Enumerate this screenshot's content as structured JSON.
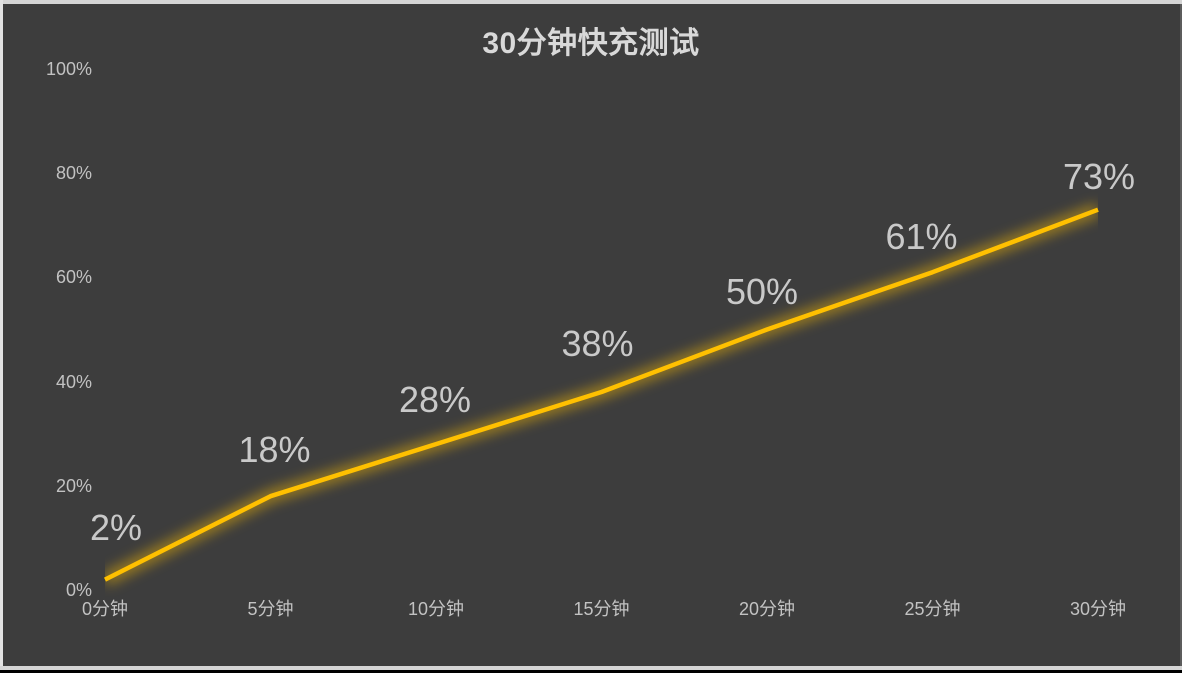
{
  "chart_data": {
    "type": "line",
    "title": "30分钟快充测试",
    "categories": [
      "0分钟",
      "5分钟",
      "10分钟",
      "15分钟",
      "20分钟",
      "25分钟",
      "30分钟"
    ],
    "values": [
      2,
      18,
      28,
      38,
      50,
      61,
      73
    ],
    "data_labels": [
      "2%",
      "18%",
      "28%",
      "38%",
      "50%",
      "61%",
      "73%"
    ],
    "y_ticks": [
      {
        "label": "100%",
        "value": 100
      },
      {
        "label": "80%",
        "value": 80
      },
      {
        "label": "60%",
        "value": 60
      },
      {
        "label": "40%",
        "value": 40
      },
      {
        "label": "20%",
        "value": 20
      },
      {
        "label": "0%",
        "value": 0
      }
    ],
    "xlabel": "",
    "ylabel": "",
    "ylim": [
      0,
      100
    ],
    "grid": false,
    "legend": false,
    "colors": {
      "line": "#FFC000",
      "glow": "#FFC000",
      "background": "#3d3d3d",
      "title_text": "#d9d9d9",
      "tick_text": "#c2c2c2",
      "data_label_text": "#c9c9c9",
      "frame_light": "#d5d5d5",
      "frame_left": "#e2e2e2",
      "frame_right": "#5c5c5c",
      "frame_bottom_bar": "#000000"
    }
  }
}
